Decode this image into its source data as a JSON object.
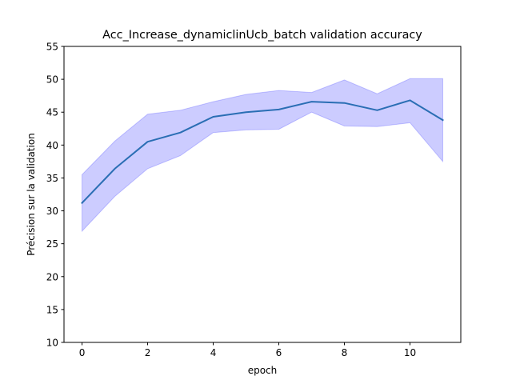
{
  "chart_data": {
    "type": "line",
    "title": "Acc_Increase_dynamiclinUcb_batch validation accuracy",
    "xlabel": "epoch",
    "ylabel": "Précision sur la validation",
    "xlim": [
      -0.55,
      11.55
    ],
    "ylim": [
      10,
      55
    ],
    "xticks": [
      0,
      2,
      4,
      6,
      8,
      10
    ],
    "yticks": [
      10,
      15,
      20,
      25,
      30,
      35,
      40,
      45,
      50,
      55
    ],
    "grid": false,
    "series": [
      {
        "x": [
          0,
          1,
          2,
          3,
          4,
          5,
          6,
          7,
          8,
          9,
          10,
          11
        ],
        "values": [
          31.2,
          36.4,
          40.5,
          41.9,
          44.3,
          45.0,
          45.4,
          46.6,
          46.4,
          45.3,
          46.8,
          43.8
        ],
        "upper": [
          35.5,
          40.6,
          44.7,
          45.3,
          46.6,
          47.7,
          48.3,
          48.0,
          49.9,
          47.8,
          50.1,
          50.1
        ],
        "lower": [
          26.9,
          32.2,
          36.4,
          38.4,
          41.9,
          42.3,
          42.4,
          45.0,
          42.9,
          42.8,
          43.4,
          37.5
        ],
        "color": "#2a6eb4",
        "band_color": "#0000ff"
      }
    ]
  }
}
